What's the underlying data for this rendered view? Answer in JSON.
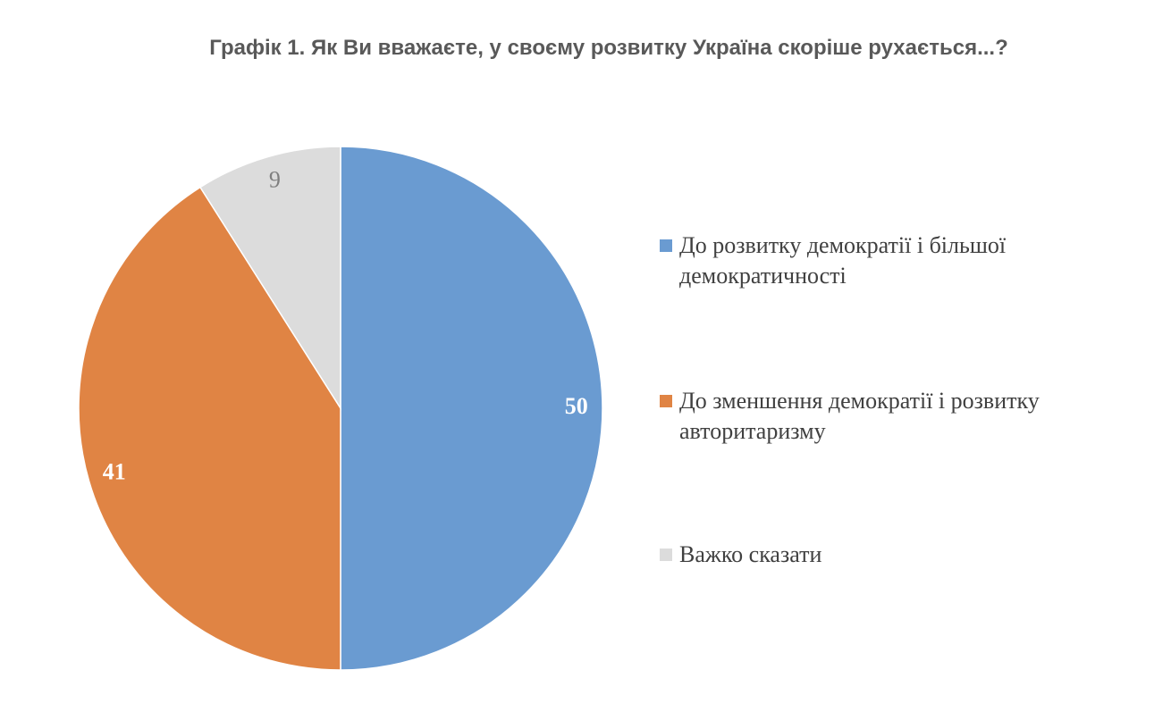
{
  "chart_data": {
    "type": "pie",
    "title": "Графік 1. Як Ви вважаєте, у своєму розвитку Україна скоріше рухається...?",
    "categories": [
      "До розвитку демократії і більшої демократичності",
      "До зменшення демократії і розвитку авторитаризму",
      "Важко сказати"
    ],
    "values": [
      50,
      41,
      9
    ],
    "data_labels": [
      "50",
      "41",
      "9"
    ],
    "colors": [
      "#6a9bd1",
      "#e08444",
      "#dcdcdc"
    ],
    "label_colors": [
      "#ffffff",
      "#ffffff",
      "#7f7f7f"
    ],
    "legend_position": "right"
  }
}
